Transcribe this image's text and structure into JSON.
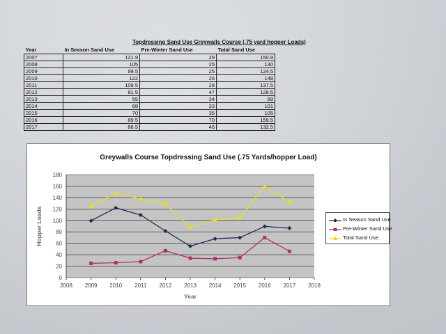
{
  "table": {
    "title": "Topdressing Sand Use Greywalls Course (.75 yard hopper Loads)",
    "headers": [
      "Year",
      "In Season Sand Use",
      "Pre-Winter Sand Use",
      "Total Sand Use"
    ],
    "rows": [
      [
        "2007",
        "121.9",
        "29",
        "150.9"
      ],
      [
        "2008",
        "105",
        "25",
        "130"
      ],
      [
        "2009",
        "99.5",
        "25",
        "124.5"
      ],
      [
        "2010",
        "122",
        "26",
        "148"
      ],
      [
        "2011",
        "109.5",
        "28",
        "137.5"
      ],
      [
        "2012",
        "81.5",
        "47",
        "128.5"
      ],
      [
        "2013",
        "55",
        "34",
        "89"
      ],
      [
        "2014",
        "68",
        "33",
        "101"
      ],
      [
        "2015",
        "70",
        "35",
        "105"
      ],
      [
        "2016",
        "89.5",
        "70",
        "159.5"
      ],
      [
        "2017",
        "86.5",
        "46",
        "132.5"
      ]
    ]
  },
  "chart_data": {
    "type": "line",
    "title": "Greywalls Course Topdressing Sand Use (.75 Yards/hopper Load)",
    "xlabel": "Year",
    "ylabel": "Hopper Loads",
    "xlim": [
      2008,
      2018
    ],
    "ylim": [
      0,
      180
    ],
    "x_ticks": [
      2008,
      2009,
      2010,
      2011,
      2012,
      2013,
      2014,
      2015,
      2016,
      2017,
      2018
    ],
    "y_ticks": [
      0,
      20,
      40,
      60,
      80,
      100,
      120,
      140,
      160,
      180
    ],
    "grid": "horizontal",
    "legend_position": "right",
    "series": [
      {
        "name": "In Season Sand Use",
        "color": "#1f2a55",
        "marker": "diamond",
        "x": [
          2009,
          2010,
          2011,
          2012,
          2013,
          2014,
          2015,
          2016,
          2017
        ],
        "y": [
          99.5,
          122,
          109.5,
          81.5,
          55,
          68,
          70,
          89.5,
          86.5
        ]
      },
      {
        "name": "Pre-Winter Sand Use",
        "color": "#b0306e",
        "marker": "square",
        "x": [
          2009,
          2010,
          2011,
          2012,
          2013,
          2014,
          2015,
          2016,
          2017
        ],
        "y": [
          25,
          26,
          28,
          47,
          34,
          33,
          35,
          70,
          46
        ]
      },
      {
        "name": "Total Sand Use",
        "color": "#e6e020",
        "marker": "triangle",
        "x": [
          2009,
          2010,
          2011,
          2012,
          2013,
          2014,
          2015,
          2016,
          2017
        ],
        "y": [
          124.5,
          148,
          137.5,
          128.5,
          89,
          101,
          105,
          159.5,
          132.5
        ]
      }
    ]
  }
}
